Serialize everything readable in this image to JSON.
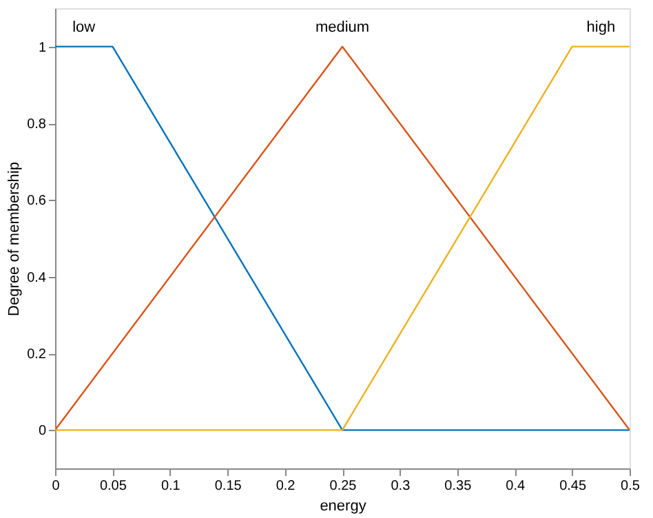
{
  "chart_data": {
    "type": "line",
    "xlabel": "energy",
    "ylabel": "Degree of membership",
    "series": [
      {
        "name": "low",
        "color": "#0072bd",
        "x": [
          0,
          0.05,
          0.25,
          0.5
        ],
        "values": [
          1,
          1,
          0,
          0
        ]
      },
      {
        "name": "medium",
        "color": "#d95319",
        "x": [
          0,
          0.25,
          0.5
        ],
        "values": [
          0,
          1,
          0
        ]
      },
      {
        "name": "high",
        "color": "#edb120",
        "x": [
          0,
          0.25,
          0.45,
          0.5
        ],
        "values": [
          0,
          0,
          1,
          1
        ]
      }
    ],
    "xlim": [
      0,
      0.5
    ],
    "xticks": [
      0,
      0.05,
      0.1,
      0.15,
      0.2,
      0.25,
      0.3,
      0.35,
      0.4,
      0.45,
      0.5
    ],
    "ylim": [
      -0.1,
      1.1
    ],
    "yticks": [
      0,
      0.2,
      0.4,
      0.6,
      0.8,
      1
    ],
    "grid": false,
    "legend": false,
    "marker": "none",
    "line_style": "solid"
  }
}
